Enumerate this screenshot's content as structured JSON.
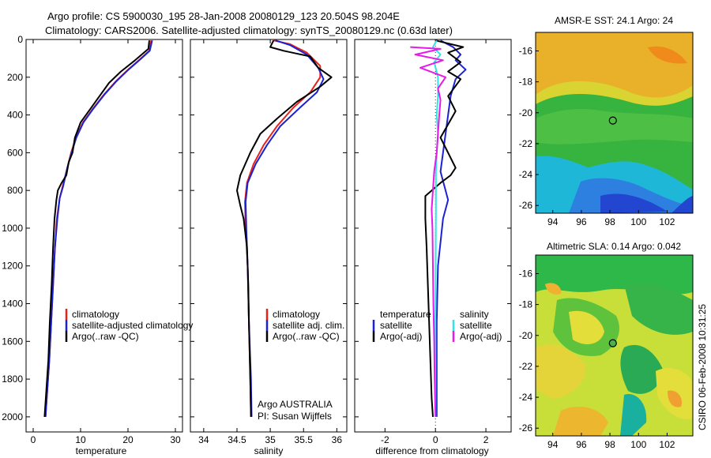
{
  "header": {
    "line1": "Argo profile: CS 5900030_195 28-Jan-2008 20080129_123 20.504S 98.204E",
    "line2": "Climatology: CARS2006. Satellite-adjusted climatology: synTS_20080129.nc (0.63d later)"
  },
  "footer": {
    "argo_label": "Argo AUSTRALIA",
    "pi_label": "PI: Susan Wijffels",
    "credit": "CSIRO 06-Feb-2008 10:31:25"
  },
  "colors": {
    "climatology": "#e8201a",
    "satellite": "#1b22d4",
    "argo": "#000000",
    "satellite_salinity": "#2ee6e6",
    "argo_salinity": "#e81ae8"
  },
  "chart_data": [
    {
      "type": "line",
      "xlabel": "temperature",
      "ylabel": "",
      "xlim": [
        -1.5,
        31.5
      ],
      "ylim": [
        2080,
        0
      ],
      "xticks": [
        0,
        10,
        20,
        30
      ],
      "yticks": [
        0,
        200,
        400,
        600,
        800,
        1000,
        1200,
        1400,
        1600,
        1800,
        2000
      ],
      "legend": {
        "placement": "lower-left",
        "entries": [
          "climatology",
          "satellite-adjusted climatology",
          "Argo(..raw -QC)"
        ]
      },
      "series": [
        {
          "name": "climatology",
          "color_key": "climatology",
          "points": [
            [
              24.9,
              5
            ],
            [
              24.5,
              60
            ],
            [
              22.3,
              110
            ],
            [
              20.0,
              160
            ],
            [
              17.5,
              220
            ],
            [
              15.0,
              290
            ],
            [
              12.5,
              370
            ],
            [
              10.5,
              440
            ],
            [
              9.0,
              520
            ],
            [
              8.0,
              600
            ],
            [
              7.2,
              680
            ],
            [
              6.2,
              780
            ],
            [
              5.6,
              840
            ],
            [
              5.0,
              950
            ],
            [
              4.6,
              1100
            ],
            [
              4.2,
              1300
            ],
            [
              3.8,
              1500
            ],
            [
              3.4,
              1700
            ],
            [
              3.0,
              1850
            ],
            [
              2.6,
              2000
            ]
          ]
        },
        {
          "name": "satellite-adjusted climatology",
          "color_key": "satellite",
          "points": [
            [
              25.1,
              5
            ],
            [
              24.6,
              60
            ],
            [
              22.4,
              110
            ],
            [
              20.1,
              160
            ],
            [
              17.6,
              220
            ],
            [
              15.1,
              290
            ],
            [
              12.6,
              370
            ],
            [
              10.6,
              440
            ],
            [
              9.1,
              520
            ],
            [
              8.1,
              600
            ],
            [
              7.2,
              680
            ],
            [
              6.3,
              780
            ],
            [
              5.6,
              840
            ],
            [
              5.1,
              950
            ],
            [
              4.6,
              1100
            ],
            [
              4.2,
              1300
            ],
            [
              3.8,
              1500
            ],
            [
              3.4,
              1700
            ],
            [
              3.0,
              1850
            ],
            [
              2.6,
              2000
            ]
          ]
        },
        {
          "name": "Argo(..raw -QC)",
          "color_key": "argo",
          "points": [
            [
              24.5,
              5
            ],
            [
              24.3,
              50
            ],
            [
              21.5,
              110
            ],
            [
              18.5,
              170
            ],
            [
              16.0,
              230
            ],
            [
              14.0,
              300
            ],
            [
              12.0,
              370
            ],
            [
              10.0,
              440
            ],
            [
              8.8,
              520
            ],
            [
              8.3,
              600
            ],
            [
              7.5,
              650
            ],
            [
              7.0,
              720
            ],
            [
              6.0,
              760
            ],
            [
              5.2,
              800
            ],
            [
              4.9,
              850
            ],
            [
              4.5,
              950
            ],
            [
              4.2,
              1100
            ],
            [
              3.9,
              1300
            ],
            [
              3.5,
              1500
            ],
            [
              3.2,
              1700
            ],
            [
              2.8,
              1850
            ],
            [
              2.4,
              2000
            ]
          ]
        }
      ]
    },
    {
      "type": "line",
      "xlabel": "salinity",
      "ylabel": "",
      "xlim": [
        33.8,
        36.15
      ],
      "ylim": [
        2080,
        0
      ],
      "xticks": [
        34,
        34.5,
        35,
        35.5,
        36
      ],
      "yticks": [],
      "legend": {
        "placement": "lower-right",
        "entries": [
          "climatology",
          "satellite adj. clim.",
          "Argo(..raw -QC)"
        ]
      },
      "series": [
        {
          "name": "climatology",
          "color_key": "climatology",
          "points": [
            [
              35.05,
              5
            ],
            [
              35.3,
              25
            ],
            [
              35.55,
              70
            ],
            [
              35.75,
              140
            ],
            [
              35.75,
              200
            ],
            [
              35.6,
              280
            ],
            [
              35.35,
              360
            ],
            [
              35.1,
              460
            ],
            [
              34.9,
              560
            ],
            [
              34.75,
              660
            ],
            [
              34.65,
              760
            ],
            [
              34.62,
              860
            ],
            [
              34.63,
              1000
            ],
            [
              34.66,
              1200
            ],
            [
              34.68,
              1500
            ],
            [
              34.7,
              1800
            ],
            [
              34.71,
              2000
            ]
          ]
        },
        {
          "name": "satellite adj. clim.",
          "color_key": "satellite",
          "points": [
            [
              35.08,
              5
            ],
            [
              35.3,
              30
            ],
            [
              35.55,
              80
            ],
            [
              35.72,
              150
            ],
            [
              35.8,
              210
            ],
            [
              35.7,
              280
            ],
            [
              35.45,
              360
            ],
            [
              35.15,
              460
            ],
            [
              34.95,
              560
            ],
            [
              34.78,
              660
            ],
            [
              34.66,
              760
            ],
            [
              34.63,
              860
            ],
            [
              34.64,
              1000
            ],
            [
              34.66,
              1200
            ],
            [
              34.68,
              1500
            ],
            [
              34.71,
              1800
            ],
            [
              34.72,
              2000
            ]
          ]
        },
        {
          "name": "Argo(..raw -QC)",
          "color_key": "argo",
          "points": [
            [
              35.05,
              5
            ],
            [
              35.0,
              40
            ],
            [
              35.2,
              60
            ],
            [
              35.6,
              90
            ],
            [
              35.72,
              150
            ],
            [
              35.92,
              200
            ],
            [
              35.75,
              250
            ],
            [
              35.4,
              330
            ],
            [
              35.1,
              420
            ],
            [
              34.85,
              500
            ],
            [
              34.7,
              600
            ],
            [
              34.55,
              720
            ],
            [
              34.5,
              800
            ],
            [
              34.55,
              880
            ],
            [
              34.6,
              950
            ],
            [
              34.65,
              1100
            ],
            [
              34.67,
              1300
            ],
            [
              34.68,
              1500
            ],
            [
              34.7,
              1800
            ],
            [
              34.71,
              2000
            ]
          ]
        }
      ]
    },
    {
      "type": "line",
      "xlabel": "difference from climatology",
      "ylabel": "",
      "xlim": [
        -3.2,
        3.0
      ],
      "ylim": [
        2080,
        0
      ],
      "xticks": [
        -2,
        0,
        2
      ],
      "yticks": [],
      "legend": {
        "placement": "lower",
        "entries": [
          "temperature",
          "satellite",
          "Argo(-adj)",
          "salinity",
          "satellite",
          "Argo(-adj)"
        ]
      },
      "series": [
        {
          "name": "temperature satellite",
          "color_key": "satellite",
          "points": [
            [
              0.2,
              5
            ],
            [
              0.7,
              40
            ],
            [
              1.0,
              80
            ],
            [
              0.8,
              110
            ],
            [
              1.2,
              160
            ],
            [
              0.8,
              210
            ],
            [
              0.6,
              300
            ],
            [
              0.5,
              400
            ],
            [
              0.4,
              500
            ],
            [
              0.3,
              600
            ],
            [
              0.2,
              700
            ],
            [
              0.5,
              850
            ],
            [
              0.3,
              950
            ],
            [
              0.1,
              1200
            ],
            [
              0.05,
              1500
            ],
            [
              0.05,
              1800
            ],
            [
              0.05,
              2000
            ]
          ]
        },
        {
          "name": "temperature Argo(-adj)",
          "color_key": "argo",
          "points": [
            [
              0.0,
              5
            ],
            [
              1.1,
              40
            ],
            [
              0.5,
              70
            ],
            [
              1.0,
              120
            ],
            [
              0.5,
              170
            ],
            [
              1.0,
              210
            ],
            [
              0.5,
              300
            ],
            [
              0.8,
              380
            ],
            [
              0.5,
              450
            ],
            [
              0.2,
              520
            ],
            [
              0.5,
              600
            ],
            [
              0.8,
              680
            ],
            [
              0.6,
              720
            ],
            [
              0.2,
              760
            ],
            [
              -0.4,
              830
            ],
            [
              -0.4,
              950
            ],
            [
              -0.35,
              1100
            ],
            [
              -0.3,
              1300
            ],
            [
              -0.25,
              1500
            ],
            [
              -0.2,
              1700
            ],
            [
              -0.15,
              1900
            ],
            [
              -0.1,
              2000
            ]
          ]
        },
        {
          "name": "salinity satellite",
          "color_key": "satellite_salinity",
          "points": [
            [
              0.05,
              5
            ],
            [
              -0.1,
              40
            ],
            [
              0.2,
              80
            ],
            [
              -0.05,
              120
            ],
            [
              0.1,
              200
            ],
            [
              0.1,
              300
            ],
            [
              0.05,
              400
            ],
            [
              0.1,
              500
            ],
            [
              0.05,
              600
            ],
            [
              0.02,
              700
            ],
            [
              0.02,
              900
            ],
            [
              0.01,
              1200
            ],
            [
              0.0,
              1500
            ],
            [
              0.0,
              1800
            ],
            [
              0.0,
              2000
            ]
          ]
        },
        {
          "name": "salinity Argo(-adj)",
          "color_key": "argo_salinity",
          "points": [
            [
              -1.0,
              40
            ],
            [
              0.2,
              50
            ],
            [
              -0.8,
              80
            ],
            [
              0.3,
              110
            ],
            [
              -0.6,
              150
            ],
            [
              0.4,
              200
            ],
            [
              0.1,
              260
            ],
            [
              0.2,
              320
            ],
            [
              0.15,
              400
            ],
            [
              0.1,
              500
            ],
            [
              0.05,
              600
            ],
            [
              -0.05,
              700
            ],
            [
              -0.1,
              800
            ],
            [
              -0.15,
              900
            ],
            [
              -0.12,
              1000
            ],
            [
              -0.1,
              1200
            ],
            [
              -0.08,
              1400
            ],
            [
              -0.05,
              1600
            ],
            [
              -0.03,
              1800
            ],
            [
              0.0,
              2000
            ]
          ]
        }
      ]
    },
    {
      "type": "heatmap",
      "title": "AMSR-E SST: 24.1  Argo: 24",
      "xlim": [
        92.8,
        103.8
      ],
      "ylim": [
        -26.5,
        -14.8
      ],
      "xticks": [
        94,
        96,
        98,
        100,
        102
      ],
      "yticks": [
        -16,
        -18,
        -20,
        -22,
        -24,
        -26
      ],
      "marker": {
        "lon": 98.204,
        "lat": -20.504
      }
    },
    {
      "type": "heatmap",
      "title": "Altimetric SLA: 0.14  Argo: 0.042",
      "xlim": [
        92.8,
        103.8
      ],
      "ylim": [
        -26.5,
        -14.8
      ],
      "xticks": [
        94,
        96,
        98,
        100,
        102
      ],
      "yticks": [
        -16,
        -18,
        -20,
        -22,
        -24,
        -26
      ],
      "marker": {
        "lon": 98.204,
        "lat": -20.504
      }
    }
  ],
  "y_tick_labels": [
    "0",
    "200",
    "400",
    "600",
    "800",
    "1000",
    "1200",
    "1400",
    "1600",
    "1800",
    "2000"
  ],
  "temp_legend": [
    "climatology",
    "satellite-adjusted climatology",
    "Argo(..raw -QC)"
  ],
  "sal_legend": [
    "climatology",
    "satellite adj. clim.",
    "Argo(..raw -QC)"
  ],
  "diff_legend": {
    "temp_title": "temperature",
    "temp_sat": "satellite",
    "temp_argo": "Argo(-adj)",
    "sal_title": "salinity",
    "sal_sat": "satellite",
    "sal_argo": "Argo(-adj)"
  }
}
